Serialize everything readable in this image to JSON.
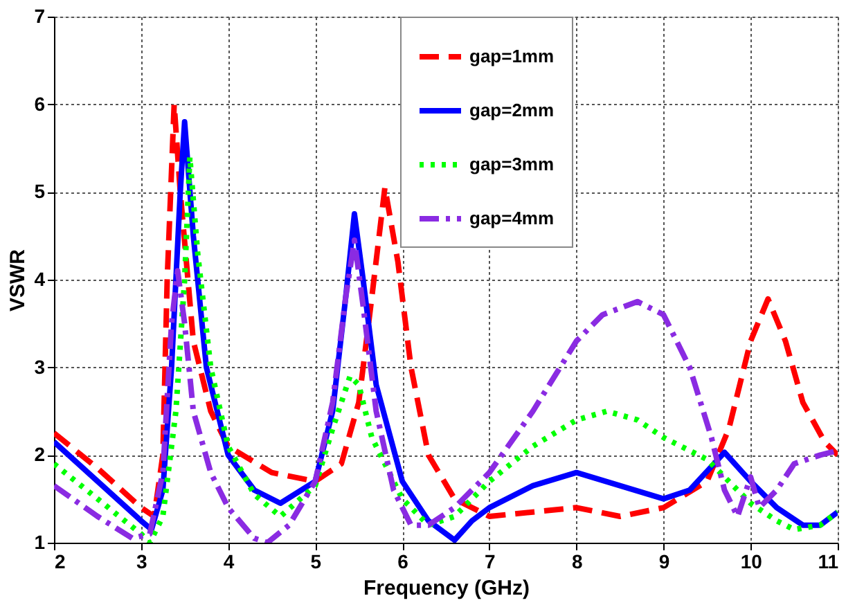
{
  "chart_data": {
    "type": "line",
    "xlabel": "Frequency (GHz)",
    "ylabel": "VSWR",
    "xlim": [
      2,
      11
    ],
    "xticks": [
      2,
      3,
      4,
      5,
      6,
      7,
      8,
      9,
      10,
      11
    ],
    "ylim": [
      1,
      7
    ],
    "yticks": [
      1,
      2,
      3,
      4,
      5,
      6,
      7
    ],
    "grid": true,
    "legend": "top right",
    "marker": "none",
    "series": [
      {
        "name": "gap=1mm",
        "color": "#ff0000",
        "line_style": "dashed",
        "x": [
          2,
          2.5,
          3,
          3.15,
          3.25,
          3.3,
          3.38,
          3.45,
          3.6,
          3.8,
          4,
          4.5,
          5,
          5.3,
          5.5,
          5.65,
          5.8,
          5.95,
          6.1,
          6.3,
          6.6,
          7,
          7.5,
          8,
          8.5,
          9,
          9.5,
          9.75,
          10,
          10.2,
          10.4,
          10.6,
          10.85,
          11
        ],
        "values": [
          2.25,
          1.85,
          1.4,
          1.3,
          2.0,
          4.0,
          6.0,
          5.0,
          3.3,
          2.5,
          2.1,
          1.8,
          1.7,
          1.9,
          2.6,
          3.8,
          5.05,
          4.2,
          3.0,
          2.0,
          1.5,
          1.3,
          1.35,
          1.4,
          1.3,
          1.4,
          1.7,
          2.3,
          3.3,
          3.78,
          3.3,
          2.6,
          2.15,
          2.0
        ]
      },
      {
        "name": "gap=2mm",
        "color": "#0000ff",
        "line_style": "solid",
        "x": [
          2,
          2.5,
          3,
          3.12,
          3.25,
          3.35,
          3.45,
          3.5,
          3.6,
          3.75,
          4,
          4.3,
          4.6,
          5,
          5.2,
          5.35,
          5.45,
          5.55,
          5.7,
          6,
          6.3,
          6.6,
          6.8,
          7,
          7.5,
          8,
          8.5,
          9,
          9.3,
          9.7,
          10,
          10.3,
          10.6,
          10.8,
          11
        ],
        "values": [
          2.15,
          1.7,
          1.25,
          1.15,
          1.6,
          3.0,
          5.0,
          5.8,
          4.5,
          3.0,
          2.0,
          1.6,
          1.45,
          1.7,
          2.5,
          3.8,
          4.75,
          4.0,
          2.8,
          1.7,
          1.25,
          1.03,
          1.25,
          1.4,
          1.65,
          1.8,
          1.65,
          1.5,
          1.6,
          2.03,
          1.7,
          1.4,
          1.2,
          1.2,
          1.35
        ]
      },
      {
        "name": "gap=3mm",
        "color": "#00ff00",
        "line_style": "dotted",
        "x": [
          2,
          2.5,
          3,
          3.1,
          3.25,
          3.4,
          3.5,
          3.56,
          3.65,
          3.8,
          4,
          4.3,
          4.6,
          5,
          5.2,
          5.4,
          5.5,
          5.65,
          6,
          6.3,
          6.6,
          7,
          7.5,
          8,
          8.35,
          8.7,
          9,
          9.5,
          9.8,
          10,
          10.3,
          10.5,
          10.8,
          11
        ],
        "values": [
          1.9,
          1.5,
          1.1,
          1.0,
          1.3,
          2.5,
          4.0,
          5.4,
          4.3,
          3.0,
          2.1,
          1.55,
          1.3,
          1.65,
          2.3,
          2.9,
          2.8,
          2.2,
          1.5,
          1.2,
          1.3,
          1.7,
          2.1,
          2.4,
          2.5,
          2.4,
          2.2,
          1.95,
          1.65,
          1.45,
          1.25,
          1.15,
          1.2,
          1.35
        ]
      },
      {
        "name": "gap=4mm",
        "color": "#8a2be2",
        "line_style": "dashdot",
        "x": [
          2,
          2.5,
          2.9,
          3.1,
          3.25,
          3.35,
          3.42,
          3.5,
          3.6,
          3.8,
          4,
          4.3,
          4.45,
          4.7,
          5,
          5.2,
          5.35,
          5.45,
          5.55,
          5.7,
          5.9,
          6.1,
          6.3,
          6.6,
          7,
          7.5,
          8,
          8.3,
          8.7,
          9,
          9.3,
          9.55,
          9.7,
          9.85,
          10,
          10.1,
          10.3,
          10.5,
          10.8,
          11
        ],
        "values": [
          1.65,
          1.3,
          1.05,
          1.1,
          1.8,
          3.5,
          4.1,
          3.5,
          2.5,
          1.8,
          1.4,
          1.05,
          1.0,
          1.2,
          1.7,
          2.6,
          3.8,
          4.45,
          3.7,
          2.5,
          1.6,
          1.2,
          1.2,
          1.4,
          1.8,
          2.5,
          3.3,
          3.6,
          3.75,
          3.6,
          3.0,
          2.2,
          1.6,
          1.3,
          1.75,
          1.4,
          1.6,
          1.9,
          2.0,
          2.05
        ]
      }
    ]
  }
}
